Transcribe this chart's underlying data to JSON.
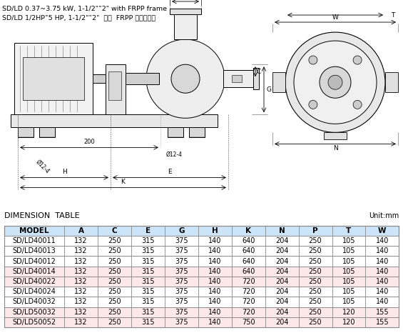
{
  "title_line1": "SD/LD 0.37~3.75 kW, 1-1/2\"˜2\" with FRPP frame",
  "title_line2": "SD/LD 1/2HP˜5 HP, 1-1/2\"˜2\"  搭配  FRPP 脚座尺尺圖",
  "dim_table_title": "DIMENSION  TABLE",
  "unit_label": "Unit:mm",
  "col_headers": [
    "MODEL",
    "A",
    "C",
    "E",
    "G",
    "H",
    "K",
    "N",
    "P",
    "T",
    "W"
  ],
  "table_data": [
    [
      "SD/LD40011",
      "132",
      "250",
      "315",
      "375",
      "140",
      "640",
      "204",
      "250",
      "105",
      "140"
    ],
    [
      "SD/LD40013",
      "132",
      "250",
      "315",
      "375",
      "140",
      "640",
      "204",
      "250",
      "105",
      "140"
    ],
    [
      "SD/LD40012",
      "132",
      "250",
      "315",
      "375",
      "140",
      "640",
      "204",
      "250",
      "105",
      "140"
    ],
    [
      "SD/LD40014",
      "132",
      "250",
      "315",
      "375",
      "140",
      "640",
      "204",
      "250",
      "105",
      "140"
    ],
    [
      "SD/LD40022",
      "132",
      "250",
      "315",
      "375",
      "140",
      "720",
      "204",
      "250",
      "105",
      "140"
    ],
    [
      "SD/LD40024",
      "132",
      "250",
      "315",
      "375",
      "140",
      "720",
      "204",
      "250",
      "105",
      "140"
    ],
    [
      "SD/LD40032",
      "132",
      "250",
      "315",
      "375",
      "140",
      "720",
      "204",
      "250",
      "105",
      "140"
    ],
    [
      "SD/LD50032",
      "132",
      "250",
      "315",
      "375",
      "140",
      "720",
      "204",
      "250",
      "120",
      "155"
    ],
    [
      "SD/LD50052",
      "132",
      "250",
      "315",
      "375",
      "140",
      "750",
      "204",
      "250",
      "120",
      "155"
    ]
  ],
  "row_colors": [
    "#ffffff",
    "#ffffff",
    "#ffffff",
    "#fce8e8",
    "#fce8e8",
    "#ffffff",
    "#ffffff",
    "#fce8e8",
    "#fce8e8"
  ],
  "header_bg": "#cce4f7",
  "border_color": "#888888",
  "text_color": "#000000",
  "title_fontsize": 7.0,
  "header_fontsize": 7.5,
  "cell_fontsize": 7.0,
  "background_color": "#ffffff"
}
